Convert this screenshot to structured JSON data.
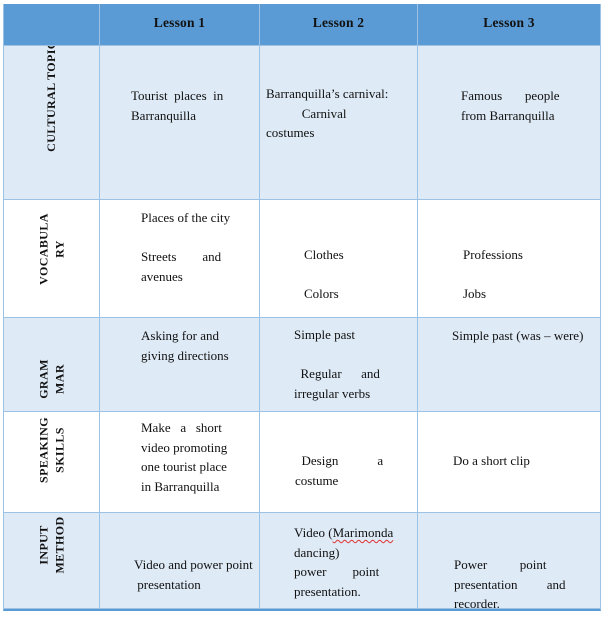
{
  "header": {
    "corner": "",
    "lessons": [
      "Lesson 1",
      "Lesson 2",
      "Lesson 3"
    ]
  },
  "rows": [
    {
      "label": "CULTURAL TOPIC",
      "cells": [
        {
          "text": "Tourist  places  in\nBarranquilla"
        },
        {
          "text": "Barranquilla’s carnival:\n           Carnival\ncostumes"
        },
        {
          "text": "Famous       people\nfrom Barranquilla"
        }
      ]
    },
    {
      "label": "VOCABULA\nRY",
      "cells": [
        {
          "text": "Places of the city\n\nStreets        and\navenues"
        },
        {
          "text": "Clothes\n\nColors"
        },
        {
          "text": "Professions\n\nJobs"
        }
      ]
    },
    {
      "label": "GRAM\nMAR",
      "cells": [
        {
          "text": "Asking for and\ngiving directions"
        },
        {
          "text": "Simple past\n\n  Regular      and\nirregular verbs"
        },
        {
          "text": "Simple past (was – were)"
        }
      ]
    },
    {
      "label": "SPEAKING\nSKILLS",
      "cells": [
        {
          "text": "Make   a   short\nvideo promoting\none tourist place\nin Barranquilla"
        },
        {
          "text": "  Design            a\ncostume"
        },
        {
          "text": "Do a short clip"
        }
      ]
    },
    {
      "label": "INPUT\nMETHOD",
      "cells": [
        {
          "text": "Video and power point\n presentation"
        },
        {
          "prefix": "Video (",
          "misspelled_word": "Marimonda",
          "suffix": "\ndancing)\npower        point\npresentation."
        },
        {
          "text": "Power          point\npresentation         and\nrecorder."
        }
      ]
    }
  ],
  "colors": {
    "header_fill": "#5b9bd5",
    "band_fill": "#deeaf6",
    "grid_line": "#9cc2e5",
    "outer_bottom_line": "#5b9bd5",
    "text": "#111111",
    "spellcheck_underline": "#e03131"
  }
}
